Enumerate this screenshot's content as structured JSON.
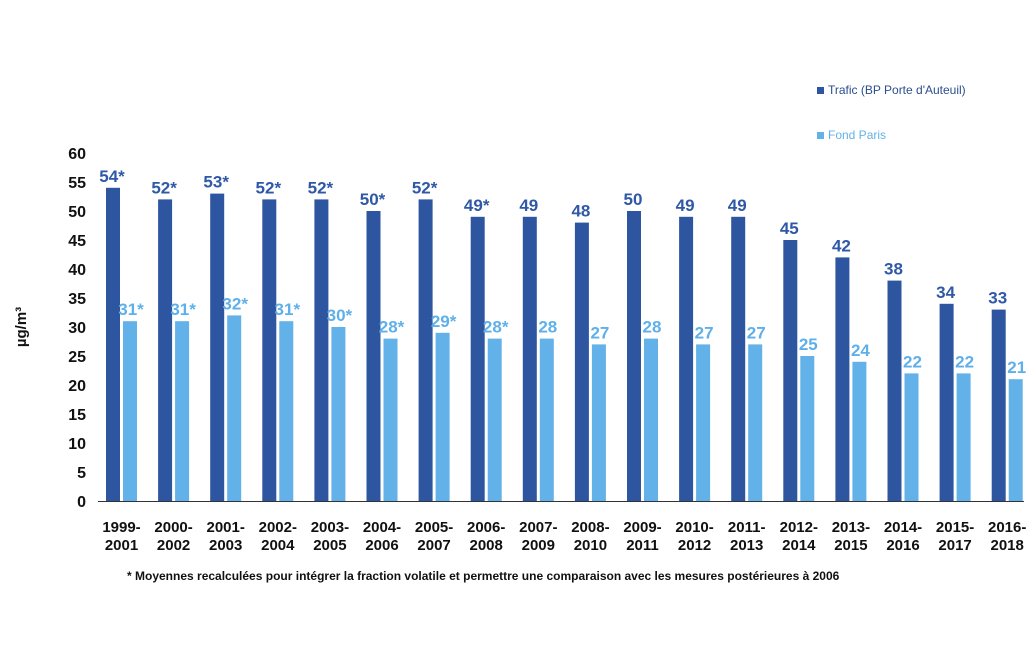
{
  "chart_data": {
    "type": "bar",
    "title": "",
    "xlabel": "",
    "ylabel": "µg/m³",
    "ylim": [
      0,
      60
    ],
    "yticks": [
      0,
      5,
      10,
      15,
      20,
      25,
      30,
      35,
      40,
      45,
      50,
      55,
      60
    ],
    "grid": false,
    "legend_position": "top-right",
    "categories": [
      [
        "1999-",
        "2001"
      ],
      [
        "2000-",
        "2002"
      ],
      [
        "2001-",
        "2003"
      ],
      [
        "2002-",
        "2004"
      ],
      [
        "2003-",
        "2005"
      ],
      [
        "2004-",
        "2006"
      ],
      [
        "2005-",
        "2007"
      ],
      [
        "2006-",
        "2008"
      ],
      [
        "2007-",
        "2009"
      ],
      [
        "2008-",
        "2010"
      ],
      [
        "2009-",
        "2011"
      ],
      [
        "2010-",
        "2012"
      ],
      [
        "2011-",
        "2013"
      ],
      [
        "2012-",
        "2014"
      ],
      [
        "2013-",
        "2015"
      ],
      [
        "2014-",
        "2016"
      ],
      [
        "2015-",
        "2017"
      ],
      [
        "2016-",
        "2018"
      ]
    ],
    "series": [
      {
        "name": "Trafic (BP Porte d'Auteuil)",
        "color": "#2E55A0",
        "label_color": "#2F58A6",
        "values": [
          54,
          52,
          53,
          52,
          52,
          50,
          52,
          49,
          49,
          48,
          50,
          49,
          49,
          45,
          42,
          38,
          34,
          33
        ],
        "labels": [
          "54*",
          "52*",
          "53*",
          "52*",
          "52*",
          "50*",
          "52*",
          "49*",
          "49",
          "48",
          "50",
          "49",
          "49",
          "45",
          "42",
          "38",
          "34",
          "33"
        ]
      },
      {
        "name": "Fond Paris",
        "color": "#62B1E8",
        "label_color": "#5FB0EA",
        "values": [
          31,
          31,
          32,
          31,
          30,
          28,
          29,
          28,
          28,
          27,
          28,
          27,
          27,
          25,
          24,
          22,
          22,
          21
        ],
        "labels": [
          "31*",
          "31*",
          "32*",
          "31*",
          "30*",
          "28*",
          "29*",
          "28*",
          "28",
          "27",
          "28",
          "27",
          "27",
          "25",
          "24",
          "22",
          "22",
          "21"
        ]
      }
    ],
    "footnote": "* Moyennes recalculées pour intégrer la fraction volatile et permettre une comparaison avec les mesures postérieures à 2006"
  }
}
